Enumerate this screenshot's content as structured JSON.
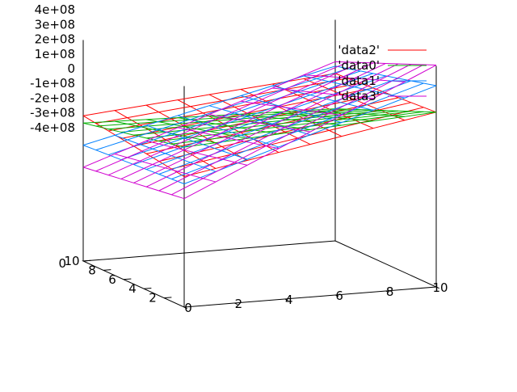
{
  "chart_data": {
    "type": "surface",
    "title": "",
    "xlabel": "",
    "ylabel": "",
    "zlabel": "",
    "x_ticks": [
      0,
      2,
      4,
      6,
      8,
      10
    ],
    "y_ticks": [
      2,
      4,
      6,
      8,
      10
    ],
    "z_ticks": [
      {
        "value": 400000000,
        "label": "4e+08"
      },
      {
        "value": 300000000,
        "label": "3e+08"
      },
      {
        "value": 200000000,
        "label": "2e+08"
      },
      {
        "value": 100000000,
        "label": "1e+08"
      },
      {
        "value": 0,
        "label": "0"
      },
      {
        "value": -100000000,
        "label": "-1e+08"
      },
      {
        "value": -200000000,
        "label": "-2e+08"
      },
      {
        "value": -300000000,
        "label": "-3e+08"
      },
      {
        "value": -400000000,
        "label": "-4e+08"
      }
    ],
    "base_label": "0",
    "xlim": [
      0,
      10
    ],
    "ylim": [
      0,
      10
    ],
    "zlim": [
      -400000000,
      400000000
    ],
    "series": [
      {
        "name": "'data2'",
        "color": "#ff0000",
        "corners": [
          [
            -200000000,
            -100000000
          ],
          [
            100000000,
            50000000
          ]
        ]
      },
      {
        "name": "'data0'",
        "color": "#00b000",
        "corners": [
          [
            0,
            -150000000
          ],
          [
            100000000,
            -190000000
          ]
        ]
      },
      {
        "name": "'data1'",
        "color": "#0080ff",
        "corners": [
          [
            -250000000,
            -300000000
          ],
          [
            280000000,
            100000000
          ]
        ]
      },
      {
        "name": "'data3'",
        "color": "#d000d0",
        "corners": [
          [
            -350000000,
            -450000000
          ],
          [
            420000000,
            130000000
          ]
        ]
      }
    ]
  }
}
